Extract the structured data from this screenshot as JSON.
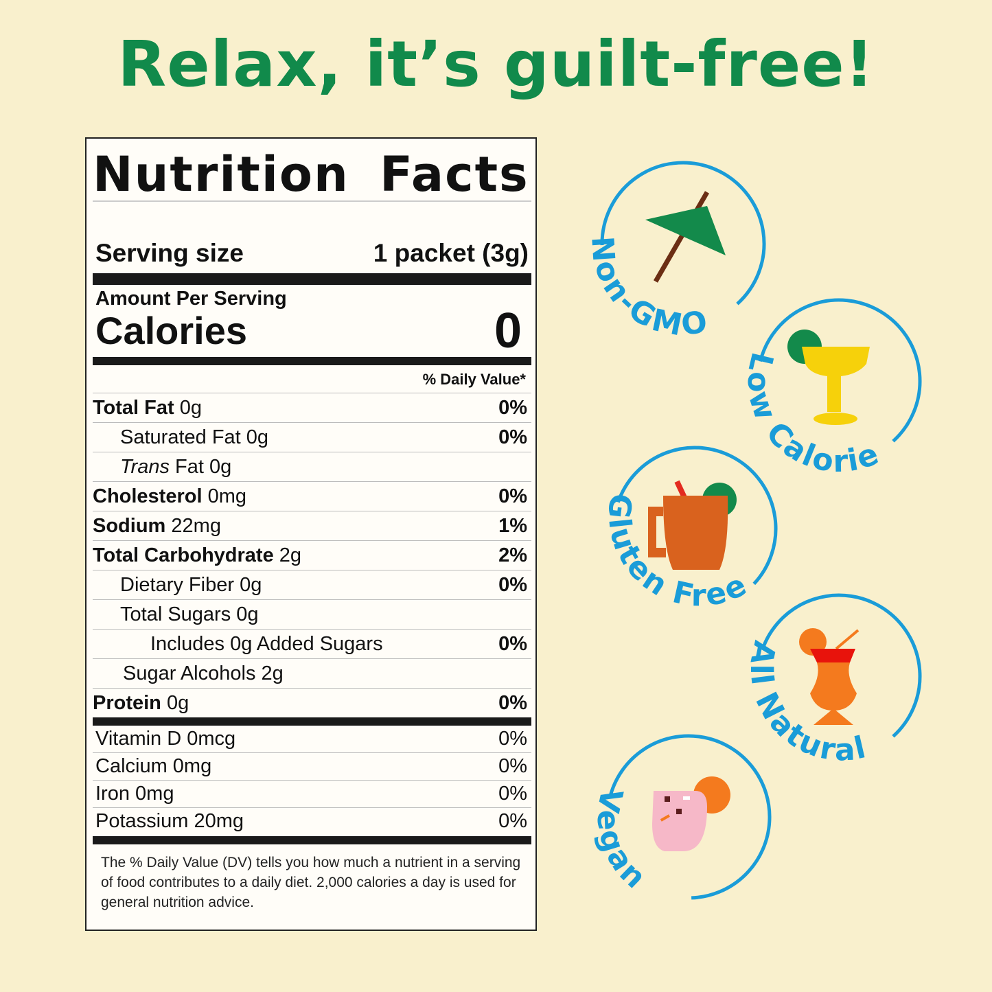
{
  "headline": "Relax, it’s guilt-free!",
  "nutrition": {
    "title": "Nutrition Facts",
    "serving_label": "Serving size",
    "serving_value": "1 packet (3g)",
    "amount_per_serving": "Amount Per Serving",
    "calories_label": "Calories",
    "calories_value": "0",
    "dv_header": "% Daily Value*",
    "rows": [
      {
        "name": "Total Fat",
        "amount": "0g",
        "dv": "0%"
      },
      {
        "name": "Saturated Fat",
        "amount": "0g",
        "dv": "0%"
      },
      {
        "name": "Trans",
        "name_rest": "Fat",
        "amount": "0g",
        "dv": ""
      },
      {
        "name": "Cholesterol",
        "amount": "0mg",
        "dv": "0%"
      },
      {
        "name": "Sodium",
        "amount": "22mg",
        "dv": "1%"
      },
      {
        "name": "Total Carbohydrate",
        "amount": "2g",
        "dv": "2%"
      },
      {
        "name": "Dietary Fiber",
        "amount": "0g",
        "dv": "0%"
      },
      {
        "name": "Total Sugars",
        "amount": "0g",
        "dv": ""
      },
      {
        "name": "Includes 0g Added Sugars",
        "amount": "",
        "dv": "0%"
      },
      {
        "name": "Sugar Alcohols",
        "amount": "2g",
        "dv": ""
      },
      {
        "name": "Protein",
        "amount": "0g",
        "dv": "0%"
      }
    ],
    "vitamins": [
      {
        "name": "Vitamin D 0mcg",
        "dv": "0%"
      },
      {
        "name": "Calcium 0mg",
        "dv": "0%"
      },
      {
        "name": "Iron 0mg",
        "dv": "0%"
      },
      {
        "name": "Potassium 20mg",
        "dv": "0%"
      }
    ],
    "footnote": "The % Daily Value (DV) tells you how much a nutrient in a serving of food contributes to a daily diet. 2,000 calories a day is used for general nutrition advice."
  },
  "badges": [
    {
      "label": "Non-GMO",
      "icon": "cocktail-umbrella-icon"
    },
    {
      "label": "Low Calorie",
      "icon": "margarita-glass-icon"
    },
    {
      "label": "Gluten Free",
      "icon": "copper-mug-icon"
    },
    {
      "label": "All Natural",
      "icon": "hurricane-glass-icon"
    },
    {
      "label": "Vegan",
      "icon": "pink-cocktail-icon"
    }
  ],
  "colors": {
    "background": "#f9f0cd",
    "headline": "#118a4b",
    "badge": "#1a9cd8"
  }
}
